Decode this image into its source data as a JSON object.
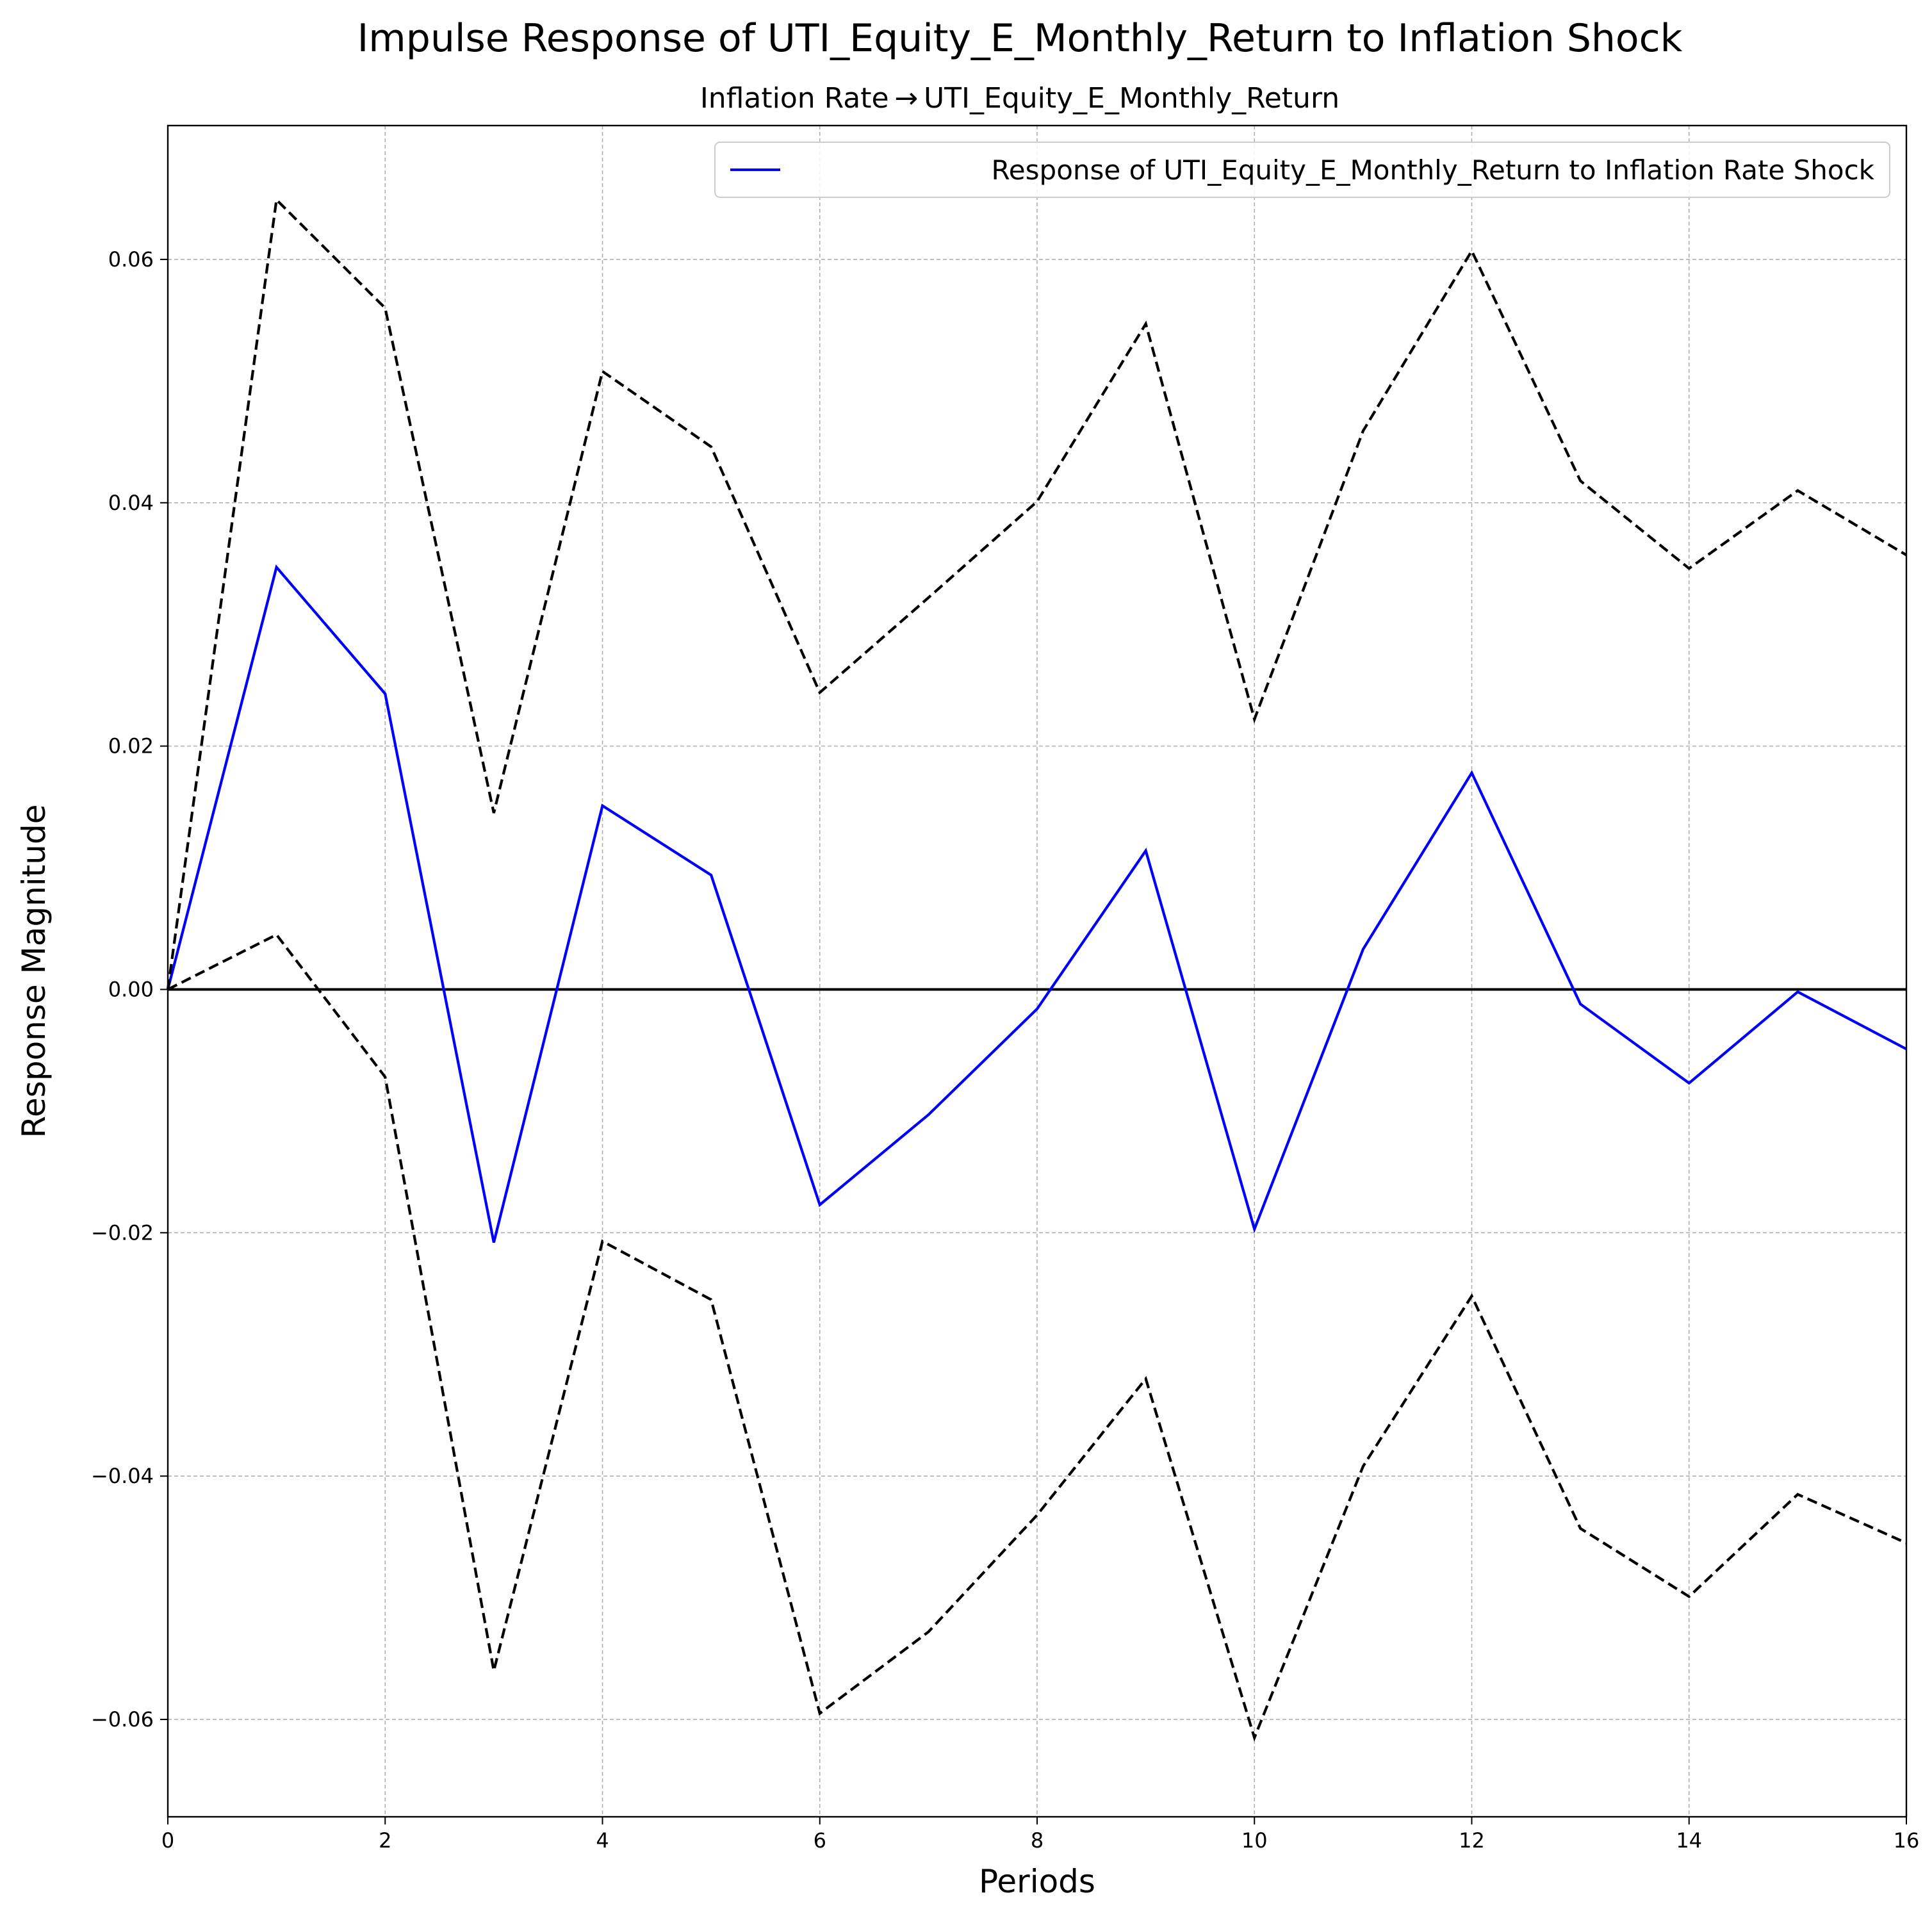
{
  "chart_data": {
    "type": "line",
    "title": "Impulse Response of UTI_Equity_E_Monthly_Return to Inflation Shock",
    "subtitle": "Inflation Rate → UTI_Equity_E_Monthly_Return",
    "xlabel": "Periods",
    "ylabel": "Response Magnitude",
    "xlim": [
      0,
      16
    ],
    "ylim": [
      -0.068,
      0.071
    ],
    "xticks": [
      0,
      2,
      4,
      6,
      8,
      10,
      12,
      14,
      16
    ],
    "yticks": [
      -0.06,
      -0.04,
      -0.02,
      0.0,
      0.02,
      0.04,
      0.06
    ],
    "ytick_labels": [
      "−0.06",
      "−0.04",
      "−0.02",
      "0.00",
      "0.02",
      "0.04",
      "0.06"
    ],
    "grid": true,
    "legend_position": "top-right",
    "x": [
      0,
      1,
      2,
      3,
      4,
      5,
      6,
      7,
      8,
      9,
      10,
      11,
      12,
      13,
      14,
      15,
      16
    ],
    "series": [
      {
        "name": "Response of UTI_Equity_E_Monthly_Return to Inflation Rate Shock",
        "color": "#0000ff",
        "style": "solid",
        "values": [
          0.0,
          0.0347,
          0.0243,
          -0.0208,
          0.0151,
          0.0094,
          -0.0177,
          -0.0103,
          -0.0016,
          0.0114,
          -0.0197,
          0.0033,
          0.0178,
          -0.0012,
          -0.0077,
          -0.0002,
          -0.0049
        ]
      },
      {
        "role": "upper-bound",
        "color": "#000000",
        "style": "dashed",
        "values": [
          0.0,
          0.0649,
          0.056,
          0.0145,
          0.0508,
          0.0446,
          0.0244,
          0.0322,
          0.0401,
          0.0547,
          0.0222,
          0.0459,
          0.0607,
          0.0418,
          0.0346,
          0.041,
          0.0357
        ]
      },
      {
        "role": "lower-bound",
        "color": "#000000",
        "style": "dashed",
        "values": [
          0.0,
          0.0045,
          -0.0072,
          -0.056,
          -0.0207,
          -0.0255,
          -0.0595,
          -0.0528,
          -0.0432,
          -0.032,
          -0.0615,
          -0.0392,
          -0.0252,
          -0.0443,
          -0.0499,
          -0.0415,
          -0.0455
        ]
      }
    ],
    "zero_line": {
      "value": 0.0,
      "color": "#000000"
    }
  }
}
